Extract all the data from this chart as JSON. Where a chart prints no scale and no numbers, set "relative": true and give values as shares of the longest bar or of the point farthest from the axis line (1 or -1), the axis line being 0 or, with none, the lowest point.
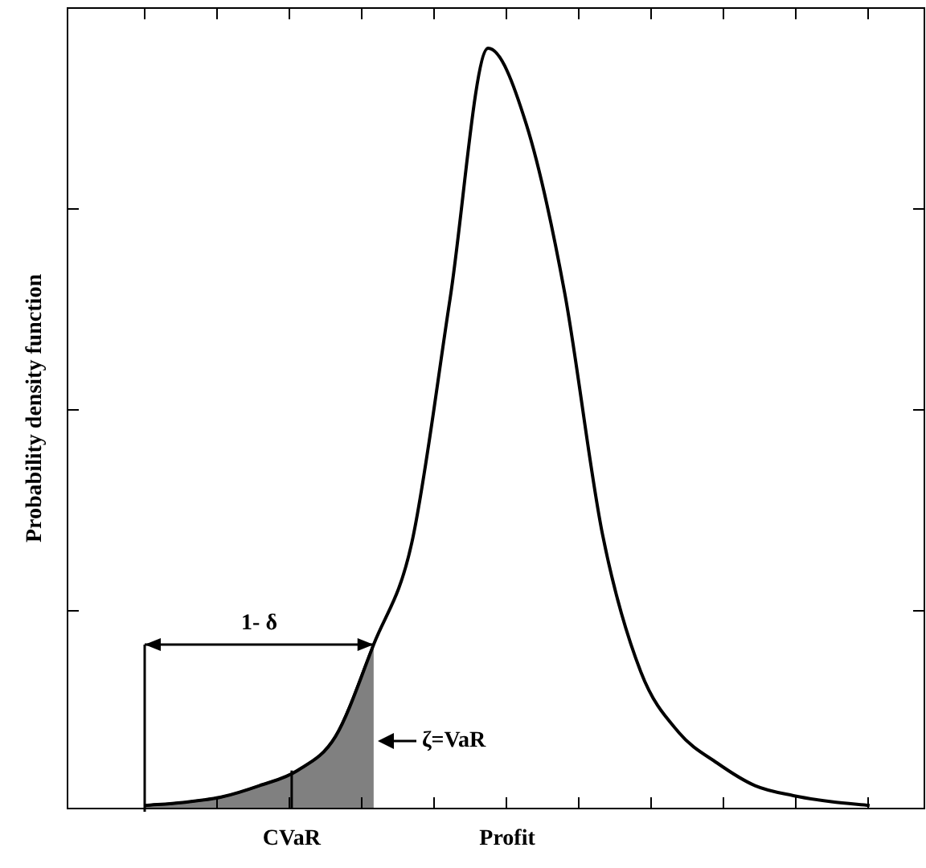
{
  "chart_data": {
    "type": "line",
    "relative": true,
    "xlabel": "Profit",
    "ylabel": "Probability density function",
    "categories": [
      null,
      null,
      null,
      null,
      null,
      null,
      null,
      null,
      null,
      null,
      null,
      null,
      null,
      null,
      null,
      null,
      null,
      null,
      null,
      null
    ],
    "series": [
      {
        "color": "#000000",
        "values": [
          0.004,
          0.008,
          0.015,
          0.03,
          0.05,
          0.095,
          0.216,
          0.35,
          0.67,
          1,
          0.9,
          0.68,
          0.36,
          0.18,
          0.1,
          0.06,
          0.03,
          0.017,
          0.009,
          0.004
        ]
      },
      {
        "type": "area",
        "color": "#808080",
        "values": [
          0.004,
          0.008,
          0.015,
          0.03,
          0.05,
          0.095,
          0.216,
          null,
          null,
          null,
          null,
          null,
          null,
          null,
          null,
          null,
          null,
          null,
          null,
          null
        ]
      }
    ],
    "annotations": [
      "1- δ",
      "ζ=VaR",
      "CVaR"
    ],
    "grid": false,
    "legend": false,
    "marker": "none",
    "tick_labels": false
  }
}
